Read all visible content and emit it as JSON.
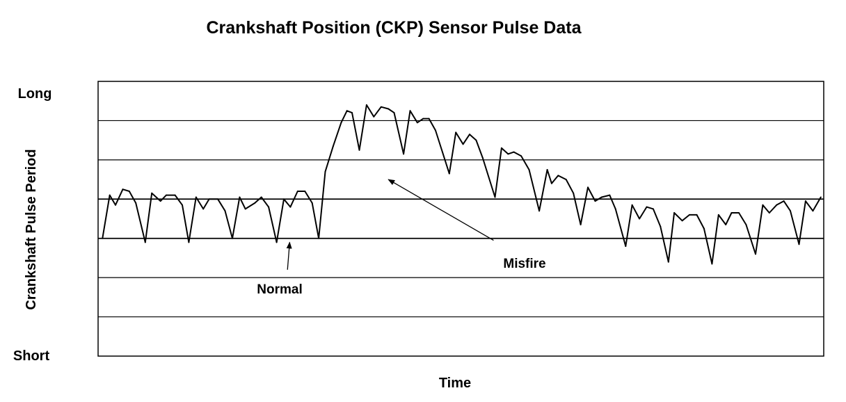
{
  "chart_data": {
    "type": "line",
    "title": "Crankshaft Position (CKP) Sensor Pulse Data",
    "xlabel": "Time",
    "ylabel": "Crankshaft Pulse Period",
    "y_top_label": "Long",
    "y_bottom_label": "Short",
    "ylim": [
      0,
      7
    ],
    "xlim": [
      0,
      100
    ],
    "gridlines_y": [
      1,
      2,
      3,
      4,
      5,
      6
    ],
    "grid": true,
    "annotations": [
      {
        "text": "Normal",
        "arrow_from": [
          26.1,
          2.2
        ],
        "arrow_to": [
          26.4,
          2.9
        ]
      },
      {
        "text": "Misfire",
        "arrow_from": [
          54.5,
          2.95
        ],
        "arrow_to": [
          40.0,
          4.5
        ]
      }
    ],
    "series": [
      {
        "values": [
          [
            0.6,
            3.0
          ],
          [
            1.6,
            4.1
          ],
          [
            2.4,
            3.85
          ],
          [
            3.4,
            4.25
          ],
          [
            4.3,
            4.2
          ],
          [
            5.2,
            3.9
          ],
          [
            6.5,
            2.9
          ],
          [
            7.4,
            4.15
          ],
          [
            8.6,
            3.95
          ],
          [
            9.4,
            4.1
          ],
          [
            10.6,
            4.1
          ],
          [
            11.6,
            3.85
          ],
          [
            12.5,
            2.9
          ],
          [
            13.5,
            4.05
          ],
          [
            14.5,
            3.75
          ],
          [
            15.3,
            4.0
          ],
          [
            16.5,
            4.0
          ],
          [
            17.5,
            3.7
          ],
          [
            18.5,
            3.0
          ],
          [
            19.5,
            4.05
          ],
          [
            20.3,
            3.75
          ],
          [
            21.6,
            3.9
          ],
          [
            22.5,
            4.05
          ],
          [
            23.5,
            3.8
          ],
          [
            24.6,
            2.9
          ],
          [
            25.6,
            4.0
          ],
          [
            26.5,
            3.8
          ],
          [
            27.5,
            4.2
          ],
          [
            28.5,
            4.2
          ],
          [
            29.5,
            3.9
          ],
          [
            30.4,
            3.0
          ],
          [
            31.3,
            4.7
          ],
          [
            32.4,
            5.35
          ],
          [
            33.5,
            5.95
          ],
          [
            34.3,
            6.25
          ],
          [
            35.0,
            6.2
          ],
          [
            36.0,
            5.25
          ],
          [
            37.0,
            6.4
          ],
          [
            38.0,
            6.1
          ],
          [
            39.0,
            6.35
          ],
          [
            40.0,
            6.3
          ],
          [
            40.8,
            6.2
          ],
          [
            42.1,
            5.15
          ],
          [
            43.0,
            6.25
          ],
          [
            44.0,
            5.95
          ],
          [
            44.8,
            6.05
          ],
          [
            45.6,
            6.05
          ],
          [
            46.5,
            5.75
          ],
          [
            48.4,
            4.65
          ],
          [
            49.3,
            5.7
          ],
          [
            50.3,
            5.4
          ],
          [
            51.2,
            5.65
          ],
          [
            52.1,
            5.5
          ],
          [
            53.0,
            5.05
          ],
          [
            54.7,
            4.05
          ],
          [
            55.6,
            5.3
          ],
          [
            56.5,
            5.15
          ],
          [
            57.3,
            5.2
          ],
          [
            58.3,
            5.1
          ],
          [
            59.4,
            4.75
          ],
          [
            60.8,
            3.7
          ],
          [
            61.9,
            4.75
          ],
          [
            62.5,
            4.4
          ],
          [
            63.4,
            4.6
          ],
          [
            64.5,
            4.5
          ],
          [
            65.5,
            4.15
          ],
          [
            66.5,
            3.35
          ],
          [
            67.5,
            4.3
          ],
          [
            68.5,
            3.95
          ],
          [
            69.4,
            4.05
          ],
          [
            70.5,
            4.1
          ],
          [
            71.3,
            3.75
          ],
          [
            72.7,
            2.8
          ],
          [
            73.6,
            3.85
          ],
          [
            74.6,
            3.5
          ],
          [
            75.6,
            3.8
          ],
          [
            76.5,
            3.75
          ],
          [
            77.5,
            3.3
          ],
          [
            78.6,
            2.4
          ],
          [
            79.4,
            3.65
          ],
          [
            80.5,
            3.45
          ],
          [
            81.5,
            3.6
          ],
          [
            82.5,
            3.6
          ],
          [
            83.5,
            3.25
          ],
          [
            84.6,
            2.35
          ],
          [
            85.5,
            3.6
          ],
          [
            86.5,
            3.35
          ],
          [
            87.3,
            3.65
          ],
          [
            88.3,
            3.65
          ],
          [
            89.3,
            3.35
          ],
          [
            90.6,
            2.6
          ],
          [
            91.6,
            3.85
          ],
          [
            92.5,
            3.65
          ],
          [
            93.5,
            3.85
          ],
          [
            94.5,
            3.95
          ],
          [
            95.4,
            3.7
          ],
          [
            96.6,
            2.85
          ],
          [
            97.5,
            3.95
          ],
          [
            98.5,
            3.7
          ],
          [
            99.6,
            4.05
          ]
        ]
      }
    ]
  }
}
